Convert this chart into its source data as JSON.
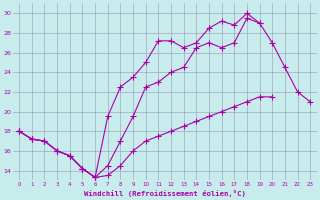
{
  "line1_y": [
    18.0,
    17.2,
    17.0,
    16.0,
    15.5,
    14.2,
    13.3,
    13.5,
    14.5,
    16.0,
    17.0,
    17.5,
    18.0,
    18.5,
    19.0,
    19.5,
    20.0,
    20.5,
    21.0,
    21.5,
    21.5,
    null,
    null,
    null
  ],
  "line2_y": [
    18.0,
    17.2,
    17.0,
    16.0,
    15.5,
    14.2,
    13.3,
    19.5,
    22.5,
    23.5,
    25.0,
    27.2,
    27.2,
    26.5,
    27.0,
    28.5,
    29.2,
    28.8,
    30.0,
    29.0,
    null,
    null,
    null,
    null
  ],
  "line3_y": [
    18.0,
    17.2,
    17.0,
    16.0,
    15.5,
    14.2,
    13.3,
    14.5,
    17.0,
    19.5,
    22.5,
    23.0,
    24.0,
    24.5,
    26.5,
    27.0,
    26.5,
    27.0,
    29.5,
    29.0,
    27.0,
    24.5,
    22.0,
    21.0
  ],
  "xvals": [
    0,
    1,
    2,
    3,
    4,
    5,
    6,
    7,
    8,
    9,
    10,
    11,
    12,
    13,
    14,
    15,
    16,
    17,
    18,
    19,
    20,
    21,
    22,
    23
  ],
  "color": "#aa00aa",
  "bg_color": "#c8ecec",
  "grid_color": "#9999bb",
  "xlabel": "Windchill (Refroidissement éolien,°C)",
  "xlim": [
    -0.5,
    23.5
  ],
  "ylim": [
    13.0,
    31.0
  ],
  "yticks": [
    14,
    16,
    18,
    20,
    22,
    24,
    26,
    28,
    30
  ],
  "xticks": [
    0,
    1,
    2,
    3,
    4,
    5,
    6,
    7,
    8,
    9,
    10,
    11,
    12,
    13,
    14,
    15,
    16,
    17,
    18,
    19,
    20,
    21,
    22,
    23
  ],
  "markersize": 2.5,
  "linewidth": 0.8
}
